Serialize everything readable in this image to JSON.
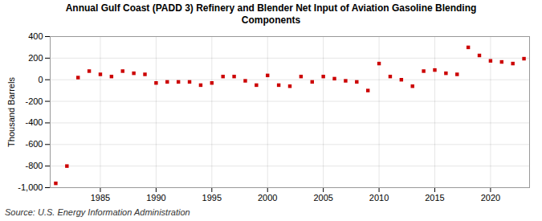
{
  "chart_data": {
    "type": "scatter",
    "title": "Annual Gulf Coast (PADD 3) Refinery and Blender Net Input of Aviation Gasoline Blending\nComponents",
    "ylabel": "Thousand Barrels",
    "source": "Source: U.S. Energy Information Administration",
    "x": [
      1981,
      1982,
      1983,
      1984,
      1985,
      1986,
      1987,
      1988,
      1989,
      1990,
      1991,
      1992,
      1993,
      1994,
      1995,
      1996,
      1997,
      1998,
      1999,
      2000,
      2001,
      2002,
      2003,
      2004,
      2005,
      2006,
      2007,
      2008,
      2009,
      2010,
      2011,
      2012,
      2013,
      2014,
      2015,
      2016,
      2017,
      2018,
      2019,
      2020,
      2021,
      2022,
      2023
    ],
    "values": [
      -960,
      -800,
      20,
      80,
      50,
      30,
      80,
      60,
      50,
      -30,
      -20,
      -20,
      -20,
      -50,
      -30,
      30,
      30,
      -10,
      -50,
      40,
      -50,
      -60,
      30,
      -20,
      30,
      10,
      -10,
      -20,
      -100,
      150,
      30,
      0,
      -60,
      80,
      90,
      60,
      50,
      300,
      225,
      175,
      165,
      150,
      195
    ],
    "color": "#cc0000",
    "marker": "square",
    "xlim": [
      1980.5,
      2023.5
    ],
    "xticks": [
      1985,
      1990,
      1995,
      2000,
      2005,
      2010,
      2015,
      2020
    ],
    "ylim": [
      -1000,
      400
    ],
    "yticks": [
      {
        "value": -1000,
        "label": "-1,000"
      },
      -800,
      -600,
      -400,
      -200,
      0,
      200,
      400
    ],
    "grid": true
  }
}
